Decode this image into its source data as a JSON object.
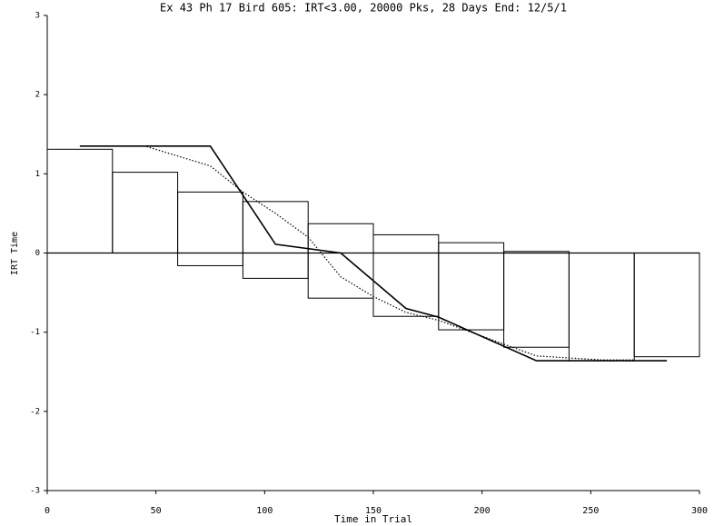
{
  "chart_data": {
    "type": "range-bar",
    "title": "Ex 43 Ph 17 Bird 605: IRT<3.00, 20000 Pks, 28 Days End: 12/5/1",
    "x_label": "Time in Trial",
    "y_label": "IRT Time",
    "xlim": [
      0,
      300
    ],
    "xticks": [
      0,
      50,
      100,
      150,
      200,
      250,
      300
    ],
    "ylim": [
      -3,
      3
    ],
    "yticks": [
      -3,
      -2,
      -1,
      0,
      1,
      2,
      3
    ],
    "color": "#000000",
    "bins": [
      0,
      30,
      60,
      90,
      120,
      150,
      180,
      210,
      240,
      270,
      300
    ],
    "upper": [
      1.31,
      1.02,
      0.77,
      0.65,
      0.37,
      0.23,
      0.13,
      0.02,
      0,
      0
    ],
    "lower": [
      0,
      0,
      -0.16,
      -0.32,
      -0.57,
      -0.8,
      -0.97,
      -1.19,
      -1.36,
      -1.31
    ],
    "lines": [
      {
        "style": "solid",
        "x": [
          15,
          75,
          105,
          135,
          165,
          180,
          225,
          285
        ],
        "values": [
          1.35,
          1.35,
          0.11,
          0,
          -0.7,
          -0.81,
          -1.36,
          -1.36
        ]
      },
      {
        "style": "dotted",
        "x": [
          15,
          45,
          75,
          90,
          105,
          120,
          135,
          150,
          165,
          180,
          210,
          225,
          255,
          270
        ],
        "values": [
          1.35,
          1.35,
          1.1,
          0.77,
          0.5,
          0.2,
          -0.3,
          -0.55,
          -0.75,
          -0.85,
          -1.15,
          -1.3,
          -1.35,
          -1.35
        ]
      }
    ]
  }
}
